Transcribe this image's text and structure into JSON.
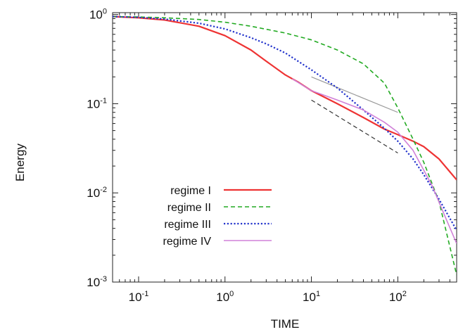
{
  "chart_data": {
    "type": "line",
    "title": "",
    "xlabel": "TIME",
    "ylabel": "Energy",
    "xscale": "log",
    "yscale": "log",
    "xlim": [
      0.05,
      480
    ],
    "ylim": [
      0.001,
      1.05
    ],
    "grid": false,
    "legend_position": "lower-left",
    "x_ticks": [
      {
        "base": "10",
        "exp": "-1",
        "value": 0.1
      },
      {
        "base": "10",
        "exp": "0",
        "value": 1
      },
      {
        "base": "10",
        "exp": "1",
        "value": 10
      },
      {
        "base": "10",
        "exp": "2",
        "value": 100
      }
    ],
    "y_ticks": [
      {
        "base": "10",
        "exp": "0",
        "value": 1
      },
      {
        "base": "10",
        "exp": "-1",
        "value": 0.1
      },
      {
        "base": "10",
        "exp": "-2",
        "value": 0.01
      },
      {
        "base": "10",
        "exp": "-3",
        "value": 0.001
      }
    ],
    "series": [
      {
        "name": "regime I",
        "color": "#ee3333",
        "style": "solid",
        "width": 2.2,
        "x": [
          0.05,
          0.1,
          0.2,
          0.5,
          1,
          2,
          3,
          5,
          7,
          10,
          20,
          40,
          70,
          100,
          150,
          200,
          300,
          480
        ],
        "y": [
          0.95,
          0.92,
          0.87,
          0.74,
          0.58,
          0.4,
          0.3,
          0.21,
          0.175,
          0.14,
          0.1,
          0.07,
          0.052,
          0.045,
          0.038,
          0.033,
          0.024,
          0.014
        ]
      },
      {
        "name": "regime II",
        "color": "#22aa22",
        "style": "dashed",
        "width": 1.6,
        "x": [
          0.05,
          0.1,
          0.2,
          0.5,
          1,
          2,
          5,
          10,
          20,
          40,
          70,
          100,
          150,
          200,
          300,
          400,
          480
        ],
        "y": [
          0.95,
          0.94,
          0.92,
          0.88,
          0.82,
          0.74,
          0.62,
          0.52,
          0.4,
          0.28,
          0.17,
          0.09,
          0.04,
          0.022,
          0.008,
          0.0025,
          0.0012
        ]
      },
      {
        "name": "regime III",
        "color": "#2233cc",
        "style": "dotted",
        "width": 2.2,
        "x": [
          0.05,
          0.1,
          0.2,
          0.5,
          1,
          2,
          3,
          5,
          10,
          20,
          40,
          70,
          100,
          150,
          200,
          300,
          480
        ],
        "y": [
          0.95,
          0.93,
          0.89,
          0.8,
          0.69,
          0.55,
          0.47,
          0.37,
          0.24,
          0.15,
          0.085,
          0.053,
          0.038,
          0.024,
          0.016,
          0.0085,
          0.0038
        ]
      },
      {
        "name": "regime IV",
        "color": "#d080d8",
        "style": "solid",
        "width": 1.6,
        "x": [
          6,
          10,
          20,
          40,
          70,
          100,
          150,
          250,
          350,
          480
        ],
        "y": [
          0.19,
          0.14,
          0.11,
          0.085,
          0.062,
          0.048,
          0.03,
          0.012,
          0.0055,
          0.0027
        ]
      }
    ],
    "reference_lines": [
      {
        "color": "#999999",
        "style": "solid",
        "x": [
          10,
          100
        ],
        "y": [
          0.2,
          0.08
        ]
      },
      {
        "color": "#333333",
        "style": "dashed",
        "x": [
          10,
          100
        ],
        "y": [
          0.11,
          0.028
        ]
      }
    ]
  }
}
